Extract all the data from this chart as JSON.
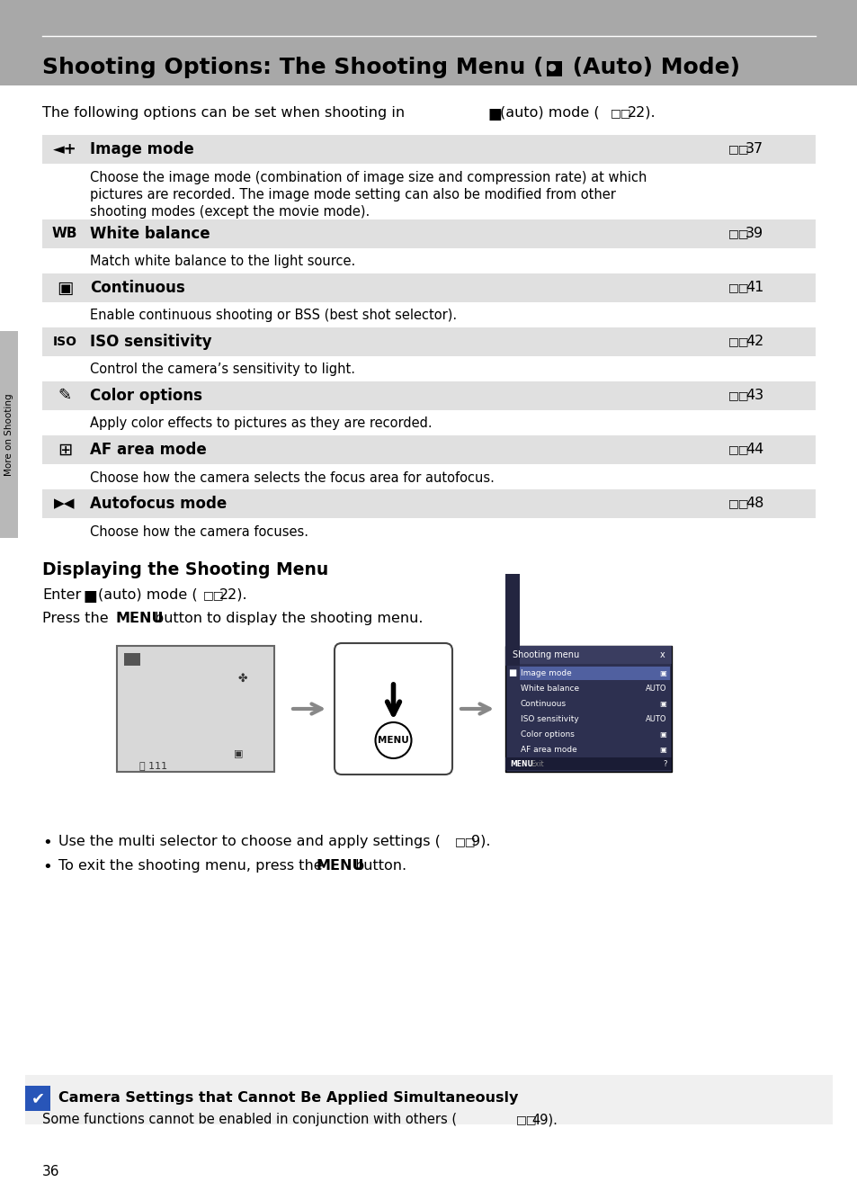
{
  "page_bg": "#ffffff",
  "header_bg": "#a8a8a8",
  "row_bg_light": "#e0e0e0",
  "row_bg_white": "#ffffff",
  "sidebar_bg": "#b8b8b8",
  "sidebar_text": "More on Shooting",
  "section_header": "Displaying the Shooting Menu",
  "menu_items": [
    {
      "name": "Image mode",
      "page": "37",
      "desc": "Choose the image mode (combination of image size and compression rate) at which pictures are recorded. The image mode setting can also be modified from other shooting modes (except the movie mode).",
      "desc_lines": 3
    },
    {
      "name": "White balance",
      "page": "39",
      "desc": "Match white balance to the light source.",
      "desc_lines": 1
    },
    {
      "name": "Continuous",
      "page": "41",
      "desc": "Enable continuous shooting or BSS (best shot selector).",
      "desc_lines": 1
    },
    {
      "name": "ISO sensitivity",
      "page": "42",
      "desc": "Control the camera’s sensitivity to light.",
      "desc_lines": 1
    },
    {
      "name": "Color options",
      "page": "43",
      "desc": "Apply color effects to pictures as they are recorded.",
      "desc_lines": 1
    },
    {
      "name": "AF area mode",
      "page": "44",
      "desc": "Choose how the camera selects the focus area for autofocus.",
      "desc_lines": 1
    },
    {
      "name": "Autofocus mode",
      "page": "48",
      "desc": "Choose how the camera focuses.",
      "desc_lines": 1
    }
  ],
  "bottom_note_title": "Camera Settings that Cannot Be Applied Simultaneously",
  "bottom_note_text": "Some functions cannot be enabled in conjunction with others (",
  "bottom_note_page": "49",
  "page_number": "36"
}
